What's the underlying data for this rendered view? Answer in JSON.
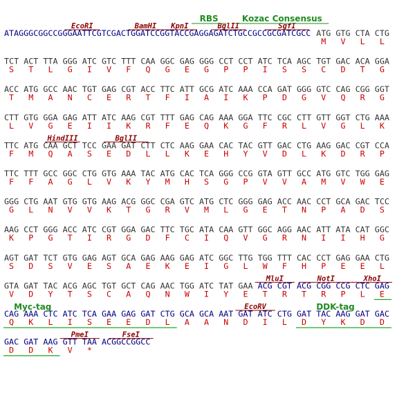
{
  "rows": [
    {
      "leader": "ATAGGGCGGCCGGGAATTCGTCGACTGGATCCGGTACCGAGGAGATCTGCCGCCGCGATCGCC",
      "codons": [
        "ATG",
        "GTG",
        "CTA",
        "CTG"
      ],
      "aa": [
        "M",
        "V",
        "L",
        "L"
      ],
      "sites": [
        "EcoRI",
        "BamHI",
        "KpnI",
        "BglII",
        "SgfI"
      ],
      "features": [
        "RBS",
        "Kozac Consensus"
      ]
    },
    {
      "codons": [
        "TCT",
        "ACT",
        "TTA",
        "GGG",
        "ATC",
        "GTC",
        "TTT",
        "CAA",
        "GGC",
        "GAG",
        "GGG",
        "CCT",
        "CCT",
        "ATC",
        "TCA",
        "AGC",
        "TGT",
        "GAC",
        "ACA",
        "GGA"
      ],
      "aa": [
        "S",
        "T",
        "L",
        "G",
        "I",
        "V",
        "F",
        "Q",
        "G",
        "E",
        "G",
        "P",
        "P",
        "I",
        "S",
        "S",
        "C",
        "D",
        "T",
        "G"
      ]
    },
    {
      "codons": [
        "ACC",
        "ATG",
        "GCC",
        "AAC",
        "TGT",
        "GAG",
        "CGT",
        "ACC",
        "TTC",
        "ATT",
        "GCG",
        "ATC",
        "AAA",
        "CCA",
        "GAT",
        "GGG",
        "GTC",
        "CAG",
        "CGG",
        "GGT"
      ],
      "aa": [
        "T",
        "M",
        "A",
        "N",
        "C",
        "E",
        "R",
        "T",
        "F",
        "I",
        "A",
        "I",
        "K",
        "P",
        "D",
        "G",
        "V",
        "Q",
        "R",
        "G"
      ]
    },
    {
      "codons": [
        "CTT",
        "GTG",
        "GGA",
        "GAG",
        "ATT",
        "ATC",
        "AAG",
        "CGT",
        "TTT",
        "GAG",
        "CAG",
        "AAA",
        "GGA",
        "TTC",
        "CGC",
        "CTT",
        "GTT",
        "GGT",
        "CTG",
        "AAA"
      ],
      "aa": [
        "L",
        "V",
        "G",
        "E",
        "I",
        "I",
        "K",
        "R",
        "F",
        "E",
        "Q",
        "K",
        "G",
        "F",
        "R",
        "L",
        "V",
        "G",
        "L",
        "K"
      ]
    },
    {
      "codons": [
        "TTC",
        "ATG",
        "CAA",
        "GCT",
        "TCC",
        "GAA",
        "GAT",
        "CTT",
        "CTC",
        "AAG",
        "GAA",
        "CAC",
        "TAC",
        "GTT",
        "GAC",
        "CTG",
        "AAG",
        "GAC",
        "CGT",
        "CCA"
      ],
      "aa": [
        "F",
        "M",
        "Q",
        "A",
        "S",
        "E",
        "D",
        "L",
        "L",
        "K",
        "E",
        "H",
        "Y",
        "V",
        "D",
        "L",
        "K",
        "D",
        "R",
        "P"
      ],
      "sites": [
        "HindIII",
        "BglII"
      ]
    },
    {
      "codons": [
        "TTC",
        "TTT",
        "GCC",
        "GGC",
        "CTG",
        "GTG",
        "AAA",
        "TAC",
        "ATG",
        "CAC",
        "TCA",
        "GGG",
        "CCG",
        "GTA",
        "GTT",
        "GCC",
        "ATG",
        "GTC",
        "TGG",
        "GAG"
      ],
      "aa": [
        "F",
        "F",
        "A",
        "G",
        "L",
        "V",
        "K",
        "Y",
        "M",
        "H",
        "S",
        "G",
        "P",
        "V",
        "V",
        "A",
        "M",
        "V",
        "W",
        "E"
      ]
    },
    {
      "codons": [
        "GGG",
        "CTG",
        "AAT",
        "GTG",
        "GTG",
        "AAG",
        "ACG",
        "GGC",
        "CGA",
        "GTC",
        "ATG",
        "CTC",
        "GGG",
        "GAG",
        "ACC",
        "AAC",
        "CCT",
        "GCA",
        "GAC",
        "TCC"
      ],
      "aa": [
        "G",
        "L",
        "N",
        "V",
        "V",
        "K",
        "T",
        "G",
        "R",
        "V",
        "M",
        "L",
        "G",
        "E",
        "T",
        "N",
        "P",
        "A",
        "D",
        "S"
      ]
    },
    {
      "codons": [
        "AAG",
        "CCT",
        "GGG",
        "ACC",
        "ATC",
        "CGT",
        "GGA",
        "GAC",
        "TTC",
        "TGC",
        "ATA",
        "CAA",
        "GTT",
        "GGC",
        "AGG",
        "AAC",
        "ATT",
        "ATA",
        "CAT",
        "GGC"
      ],
      "aa": [
        "K",
        "P",
        "G",
        "T",
        "I",
        "R",
        "G",
        "D",
        "F",
        "C",
        "I",
        "Q",
        "V",
        "G",
        "R",
        "N",
        "I",
        "I",
        "H",
        "G"
      ]
    },
    {
      "codons": [
        "AGT",
        "GAT",
        "TCT",
        "GTG",
        "GAG",
        "AGT",
        "GCA",
        "GAG",
        "AAG",
        "GAG",
        "ATC",
        "GGC",
        "TTG",
        "TGG",
        "TTT",
        "CAC",
        "CCT",
        "GAG",
        "GAA",
        "CTG"
      ],
      "aa": [
        "S",
        "D",
        "S",
        "V",
        "E",
        "S",
        "A",
        "E",
        "K",
        "E",
        "I",
        "G",
        "L",
        "W",
        "F",
        "H",
        "P",
        "E",
        "E",
        "L"
      ]
    },
    {
      "codons": [
        "GTA",
        "GAT",
        "TAC",
        "ACG",
        "AGC",
        "TGT",
        "GCT",
        "CAG",
        "AAC",
        "TGG",
        "ATC",
        "TAT",
        "GAA",
        "ACG",
        "CGT",
        "ACG",
        "CGG",
        "CCG",
        "CTC",
        "GAG"
      ],
      "aa": [
        "V",
        "D",
        "Y",
        "T",
        "S",
        "C",
        "A",
        "Q",
        "N",
        "W",
        "I",
        "Y",
        "E",
        "T",
        "R",
        "T",
        "R",
        "P",
        "L",
        "E"
      ],
      "sites": [
        "MluI",
        "NotI",
        "XhoI"
      ]
    },
    {
      "codons": [
        "CAG",
        "AAA",
        "CTC",
        "ATC",
        "TCA",
        "GAA",
        "GAG",
        "GAT",
        "CTG",
        "GCA",
        "GCA",
        "AAT",
        "GAT",
        "ATC",
        "CTG",
        "GAT",
        "TAC",
        "AAG",
        "GAT",
        "GAC"
      ],
      "aa": [
        "Q",
        "K",
        "L",
        "I",
        "S",
        "E",
        "E",
        "D",
        "L",
        "A",
        "A",
        "N",
        "D",
        "I",
        "L",
        "D",
        "Y",
        "K",
        "D",
        "D"
      ],
      "sites": [
        "EcoRV"
      ],
      "features": [
        "Myc-tag",
        "DDK-tag"
      ]
    },
    {
      "codons": [
        "GAC",
        "GAT",
        "AAG",
        "GTT",
        "TAA"
      ],
      "aa": [
        "D",
        "D",
        "K",
        "V",
        "*"
      ],
      "trailer": "ACGGCCGGCC",
      "sites": [
        "PmeI",
        "FseI"
      ]
    }
  ]
}
